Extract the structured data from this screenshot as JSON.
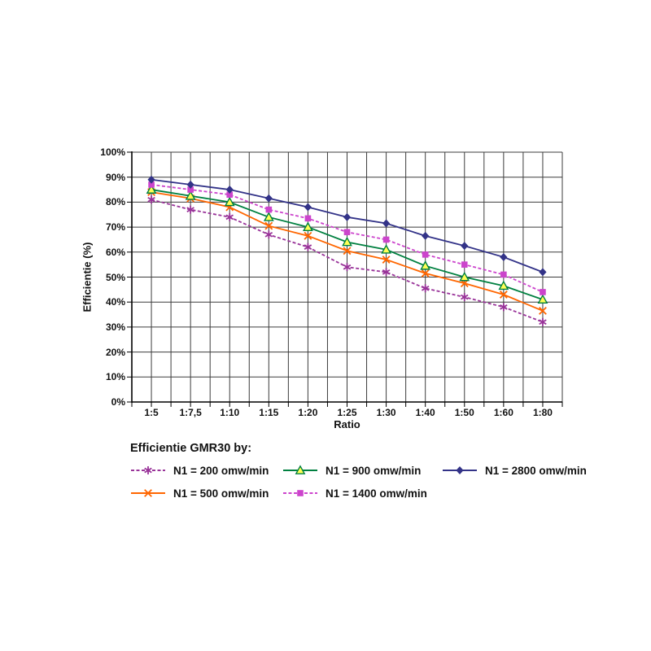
{
  "page": {
    "background": "#ffffff"
  },
  "chart_data": {
    "type": "line",
    "title": "",
    "xlabel": "Ratio",
    "ylabel": "Efficientie (%)",
    "categories": [
      "1:5",
      "1:7,5",
      "1:10",
      "1:15",
      "1:20",
      "1:25",
      "1:30",
      "1:40",
      "1:50",
      "1:60",
      "1:80"
    ],
    "y_tick_labels": [
      "100%",
      "90%",
      "80%",
      "70%",
      "60%",
      "50%",
      "40%",
      "30%",
      "20%",
      "10%",
      "0%"
    ],
    "ylim": [
      0,
      100
    ],
    "grid": "both",
    "grid_color": "#3c3c3c",
    "axis_color": "#000000",
    "series": [
      {
        "name": "N1 = 200 omw/min",
        "color": "#993399",
        "marker": "asterisk",
        "dash": "4,2.5",
        "values": [
          81,
          77,
          74,
          67,
          62,
          54,
          52,
          45.5,
          42,
          38,
          32
        ]
      },
      {
        "name": "N1 = 500 omw/min",
        "color": "#FF6600",
        "marker": "x",
        "dash": "",
        "values": [
          84,
          81.5,
          78,
          70.5,
          66.5,
          60.5,
          57,
          51.5,
          47.5,
          43,
          36.5
        ]
      },
      {
        "name": "N1 = 900 omw/min",
        "color": "#008040",
        "marker": "triangle",
        "marker_fill": "#FFFF55",
        "dash": "",
        "values": [
          85,
          82.5,
          80,
          74,
          70,
          64,
          61,
          54.5,
          50,
          46.5,
          41
        ]
      },
      {
        "name": "N1 = 1400 omw/min",
        "color": "#CC44CC",
        "marker": "square",
        "dash": "4,2.5",
        "values": [
          87,
          85,
          83,
          77,
          73.5,
          68,
          65,
          59,
          55,
          51,
          44
        ]
      },
      {
        "name": "N1 = 2800 omw/min",
        "color": "#333388",
        "marker": "diamond",
        "dash": "",
        "values": [
          89,
          87,
          85,
          81.5,
          78,
          74,
          71.5,
          66.5,
          62.5,
          58,
          52
        ]
      }
    ],
    "legend": {
      "title": "Efficientie GMR30 by:",
      "position": "bottom",
      "columns": [
        [
          0,
          1
        ],
        [
          2,
          3
        ],
        [
          4
        ]
      ]
    }
  }
}
